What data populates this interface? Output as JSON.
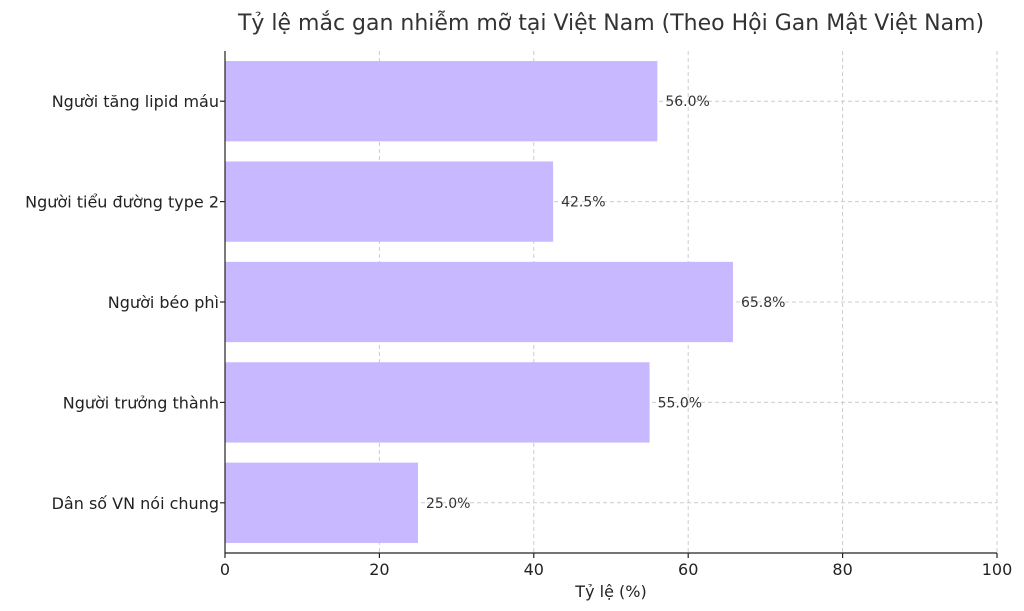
{
  "chart_data": {
    "type": "bar",
    "orientation": "horizontal",
    "title": "Tỷ lệ mắc gan nhiễm mỡ tại Việt Nam (Theo Hội Gan Mật Việt Nam)",
    "xlabel": "Tỷ lệ (%)",
    "ylabel": "",
    "xlim": [
      0,
      100
    ],
    "xticks": [
      0,
      20,
      40,
      60,
      80,
      100
    ],
    "grid": true,
    "bar_color": "#c8b8ff",
    "categories": [
      "Người tăng lipid máu",
      "Người tiểu đường type 2",
      "Người béo phì",
      "Người trưởng thành",
      "Dân số VN nói chung"
    ],
    "values": [
      56.0,
      42.5,
      65.8,
      55.0,
      25.0
    ],
    "value_labels": [
      "56.0%",
      "42.5%",
      "65.8%",
      "55.0%",
      "25.0%"
    ]
  }
}
